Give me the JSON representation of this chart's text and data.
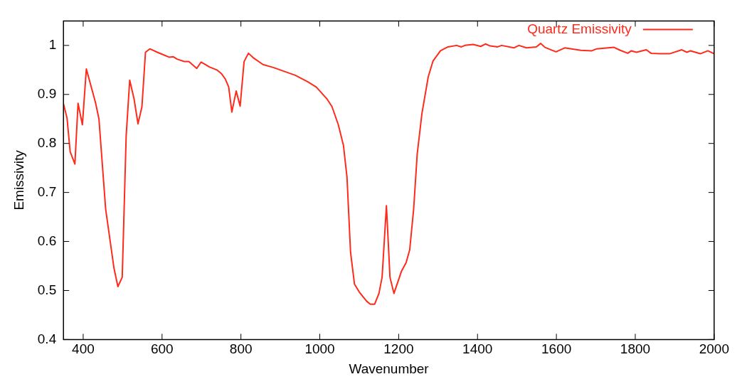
{
  "chart_data": {
    "type": "line",
    "xlabel": "Wavenumber",
    "ylabel": "Emissivity",
    "legend": "top right",
    "marker": "none",
    "line_style": "solid",
    "xlim": [
      350,
      2000
    ],
    "xticks": [
      400,
      600,
      800,
      1000,
      1200,
      1400,
      1600,
      1800,
      2000
    ],
    "ylim": [
      0.4,
      1.05
    ],
    "yticks": [
      0.4,
      0.5,
      0.6,
      0.7,
      0.8,
      0.9,
      1
    ],
    "series": [
      {
        "name": "Quartz Emissivity",
        "color": "#ff2a1a",
        "x": [
          350,
          359,
          367,
          379,
          387,
          398,
          408,
          431,
          440,
          457,
          478,
          488,
          499,
          509,
          518,
          529,
          539,
          549,
          558,
          569,
          588,
          600,
          618,
          628,
          638,
          657,
          668,
          688,
          699,
          708,
          720,
          739,
          751,
          760,
          769,
          777,
          788,
          798,
          808,
          819,
          831,
          856,
          882,
          910,
          938,
          969,
          991,
          1019,
          1031,
          1047,
          1060,
          1069,
          1078,
          1088,
          1100,
          1119,
          1128,
          1139,
          1150,
          1158,
          1169,
          1178,
          1188,
          1207,
          1219,
          1228,
          1238,
          1247,
          1259,
          1275,
          1287,
          1306,
          1325,
          1347,
          1359,
          1368,
          1389,
          1408,
          1420,
          1432,
          1451,
          1461,
          1492,
          1505,
          1524,
          1549,
          1560,
          1571,
          1599,
          1621,
          1662,
          1690,
          1702,
          1746,
          1762,
          1781,
          1790,
          1803,
          1828,
          1840,
          1862,
          1887,
          1918,
          1931,
          1940,
          1965,
          1984,
          2000
        ],
        "values": [
          0.881,
          0.852,
          0.783,
          0.758,
          0.882,
          0.838,
          0.952,
          0.884,
          0.85,
          0.666,
          0.546,
          0.508,
          0.527,
          0.815,
          0.929,
          0.891,
          0.84,
          0.875,
          0.986,
          0.993,
          0.986,
          0.982,
          0.976,
          0.977,
          0.972,
          0.967,
          0.967,
          0.953,
          0.966,
          0.962,
          0.956,
          0.95,
          0.942,
          0.932,
          0.915,
          0.864,
          0.907,
          0.876,
          0.967,
          0.984,
          0.975,
          0.961,
          0.955,
          0.947,
          0.939,
          0.926,
          0.915,
          0.89,
          0.875,
          0.838,
          0.796,
          0.731,
          0.578,
          0.513,
          0.497,
          0.478,
          0.472,
          0.472,
          0.494,
          0.527,
          0.673,
          0.527,
          0.494,
          0.539,
          0.557,
          0.583,
          0.666,
          0.778,
          0.861,
          0.936,
          0.968,
          0.989,
          0.997,
          1.0,
          0.997,
          1.0,
          1.002,
          0.998,
          1.003,
          0.999,
          0.997,
          1.0,
          0.995,
          1.0,
          0.995,
          0.997,
          1.004,
          0.996,
          0.987,
          0.995,
          0.99,
          0.989,
          0.993,
          0.996,
          0.99,
          0.984,
          0.989,
          0.986,
          0.991,
          0.984,
          0.983,
          0.983,
          0.991,
          0.986,
          0.989,
          0.983,
          0.989,
          0.983
        ]
      }
    ]
  }
}
